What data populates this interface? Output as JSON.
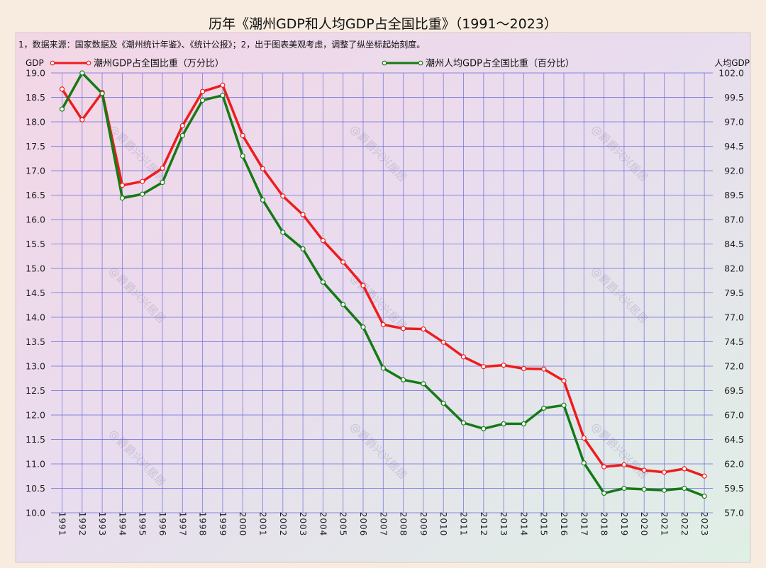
{
  "chart_data": {
    "type": "line",
    "title": "历年《潮州GDP和人均GDP占全国比重》（1991～2023）",
    "note": "1，数据来源：国家数据及《潮州统计年鉴》、《统计公报》；2，出于图表美观考虑，调整了纵坐标起始刻度。",
    "watermark": "@爵爵兴兴居居",
    "left_axis": {
      "label": "GDP",
      "ylim": [
        10.0,
        19.0
      ],
      "ticks": [
        "10.0",
        "10.5",
        "11.0",
        "11.5",
        "12.0",
        "12.5",
        "13.0",
        "13.5",
        "14.0",
        "14.5",
        "15.0",
        "15.5",
        "16.0",
        "16.5",
        "17.0",
        "17.5",
        "18.0",
        "18.5",
        "19.0"
      ]
    },
    "right_axis": {
      "label": "人均GDP",
      "ylim": [
        57.0,
        102.0
      ],
      "ticks": [
        "57.0",
        "59.5",
        "62.0",
        "64.5",
        "67.0",
        "69.5",
        "72.0",
        "74.5",
        "77.0",
        "79.5",
        "82.0",
        "84.5",
        "87.0",
        "89.5",
        "92.0",
        "94.5",
        "97.0",
        "99.5",
        "102.0"
      ]
    },
    "x": [
      "1991",
      "1992",
      "1993",
      "1994",
      "1995",
      "1996",
      "1997",
      "1998",
      "1999",
      "2000",
      "2001",
      "2002",
      "2003",
      "2004",
      "2005",
      "2006",
      "2007",
      "2008",
      "2009",
      "2010",
      "2011",
      "2012",
      "2013",
      "2014",
      "2015",
      "2016",
      "2017",
      "2018",
      "2019",
      "2020",
      "2021",
      "2022",
      "2023"
    ],
    "series": [
      {
        "name": "潮州GDP占全国比重（万分比）",
        "axis": "left",
        "color": "#ee1c1c",
        "values": [
          18.67,
          18.04,
          18.6,
          16.7,
          16.78,
          17.05,
          17.92,
          18.62,
          18.75,
          17.72,
          17.04,
          16.48,
          16.1,
          15.57,
          15.13,
          14.65,
          13.85,
          13.77,
          13.76,
          13.49,
          13.19,
          12.99,
          13.02,
          12.95,
          12.94,
          12.7,
          11.53,
          10.94,
          10.98,
          10.87,
          10.83,
          10.9,
          10.75
        ]
      },
      {
        "name": "潮州人均GDP占全国比重（百分比）",
        "axis": "right",
        "color": "#147a14",
        "values": [
          98.3,
          102.0,
          99.9,
          89.2,
          89.6,
          90.8,
          95.6,
          99.2,
          99.7,
          93.5,
          89.0,
          85.7,
          84.0,
          80.6,
          78.3,
          76.0,
          71.8,
          70.6,
          70.2,
          68.2,
          66.2,
          65.6,
          66.1,
          66.1,
          67.7,
          68.0,
          62.1,
          59.0,
          59.5,
          59.4,
          59.3,
          59.5,
          58.7
        ]
      }
    ]
  }
}
